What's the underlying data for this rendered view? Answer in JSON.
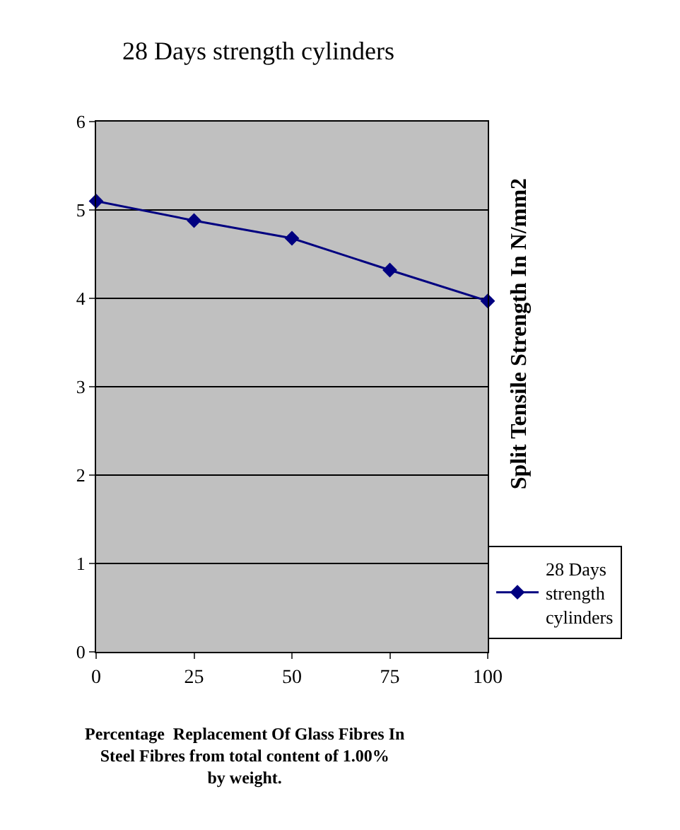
{
  "chart_data": {
    "type": "line",
    "title": "28 Days strength cylinders",
    "xlabel": "Percentage  Replacement Of Glass Fibres In Steel Fibres from total content of 1.00%  by weight.",
    "ylabel": "Split Tensile Strength In N/mm2",
    "x": [
      0,
      25,
      50,
      75,
      100
    ],
    "series": [
      {
        "name": "28 Days strength cylinders",
        "color": "#000080",
        "values": [
          5.1,
          4.88,
          4.68,
          4.32,
          3.97
        ]
      }
    ],
    "xlim": [
      0,
      100
    ],
    "xticks": [
      0,
      25,
      50,
      75,
      100
    ],
    "ylim": [
      0,
      6
    ],
    "yticks": [
      0,
      1,
      2,
      3,
      4,
      5,
      6
    ],
    "grid": "y",
    "legend": "bottom right",
    "marker": "diamond",
    "line_style": "solid"
  }
}
